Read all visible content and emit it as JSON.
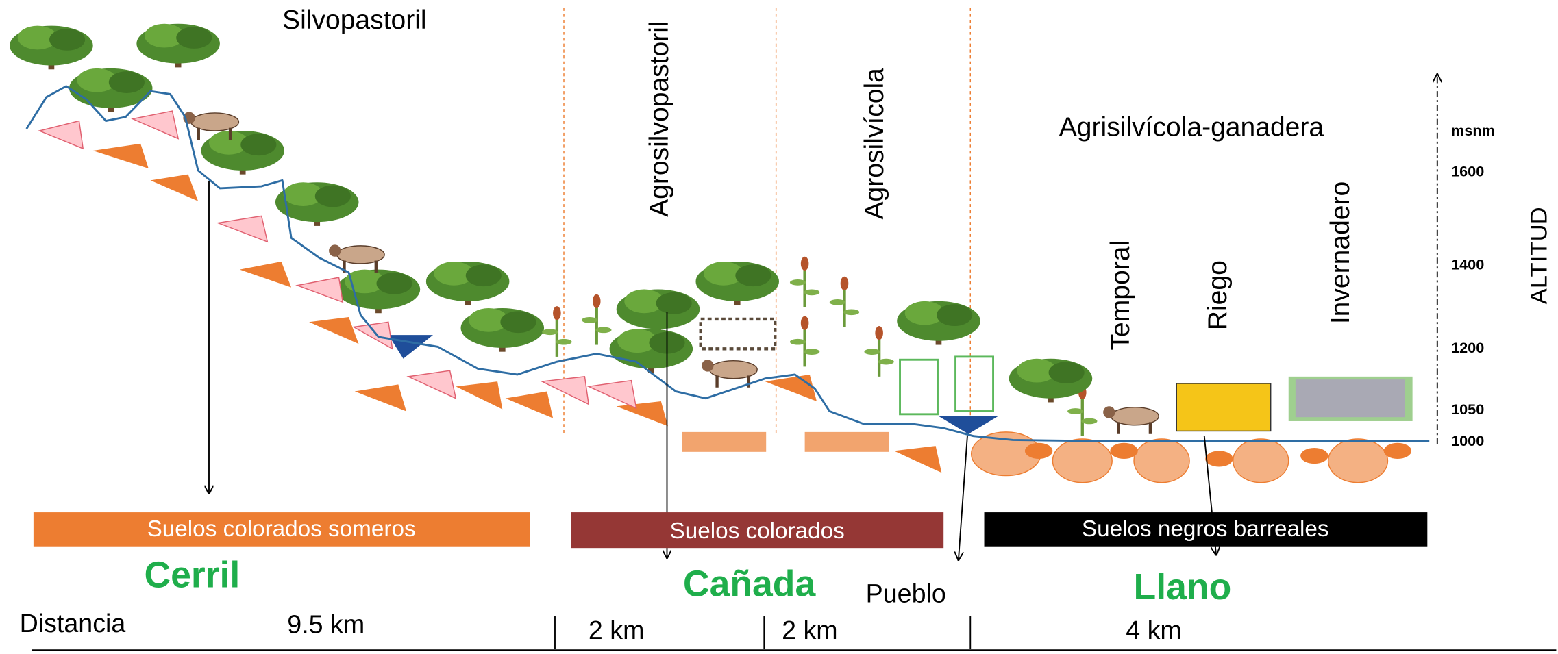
{
  "zones": [
    "Silvopastoril",
    "Agrosilvopastoril",
    "Agrosilvícola",
    "Agrisilvícola-ganadera"
  ],
  "subzones": [
    "Temporal",
    "Riego",
    "Invernadero"
  ],
  "altitude": {
    "title": "ALTITUD",
    "unit": "msnm",
    "ticks": [
      "1600",
      "1400",
      "1200",
      "1050",
      "1000"
    ]
  },
  "soils": [
    "Suelos colorados someros",
    "Suelos colorados",
    "Suelos negros barreales"
  ],
  "regions": [
    "Cerril",
    "Cañada",
    "Llano"
  ],
  "town": "Pueblo",
  "distance": {
    "label": "Distancia",
    "segments": [
      "9.5 km",
      "2 km",
      "2 km",
      "4 km"
    ]
  }
}
